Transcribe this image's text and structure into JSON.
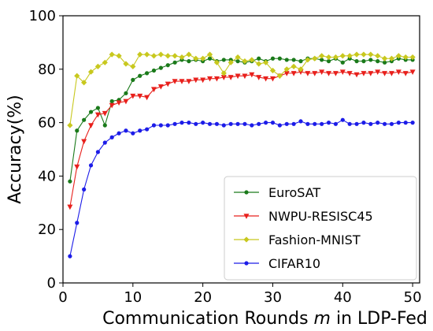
{
  "chart_data": {
    "type": "line",
    "xlabel_prefix": "Communication Rounds ",
    "xlabel_var": "m",
    "xlabel_suffix": " in LDP-Fed",
    "ylabel": "Accuracy(%)",
    "xlim": [
      0,
      51
    ],
    "ylim": [
      0,
      100
    ],
    "xticks": [
      0,
      10,
      20,
      30,
      40,
      50
    ],
    "yticks": [
      0,
      20,
      40,
      60,
      80,
      100
    ],
    "grid": false,
    "legend_position": "lower-right",
    "x": [
      1,
      2,
      3,
      4,
      5,
      6,
      7,
      8,
      9,
      10,
      11,
      12,
      13,
      14,
      15,
      16,
      17,
      18,
      19,
      20,
      21,
      22,
      23,
      24,
      25,
      26,
      27,
      28,
      29,
      30,
      31,
      32,
      33,
      34,
      35,
      36,
      37,
      38,
      39,
      40,
      41,
      42,
      43,
      44,
      45,
      46,
      47,
      48,
      49,
      50
    ],
    "series": [
      {
        "name": "EuroSAT",
        "color": "#1a7a1a",
        "marker": "dot",
        "values": [
          38,
          57,
          61,
          64,
          65.5,
          59,
          68,
          68.5,
          71,
          76,
          77.5,
          78.5,
          79.5,
          80.5,
          81.5,
          82.5,
          83.5,
          83,
          83.5,
          83,
          84,
          83,
          83.5,
          83.5,
          83,
          82.5,
          83,
          84,
          83,
          84,
          84,
          83.5,
          83.5,
          83,
          84,
          84,
          83.5,
          83,
          84,
          82.5,
          84,
          83,
          83,
          83.5,
          83,
          82.5,
          83,
          84,
          83.5,
          83.5
        ]
      },
      {
        "name": "NWPU-RESISC45",
        "color": "#e8201c",
        "marker": "triangle-down",
        "values": [
          28.5,
          43.5,
          53,
          59,
          63,
          63.5,
          66.5,
          67.5,
          68,
          70,
          70,
          69.5,
          72.5,
          73.5,
          74.5,
          75.5,
          75.5,
          75.5,
          76,
          76,
          76.5,
          76.5,
          77,
          77,
          77.5,
          77.5,
          78,
          77,
          76.5,
          76.5,
          77.5,
          78.5,
          78.5,
          79,
          78.5,
          78.5,
          79,
          78.5,
          78.5,
          79,
          78.5,
          78,
          78.5,
          78.5,
          79,
          78.5,
          78.5,
          79,
          78.5,
          79
        ]
      },
      {
        "name": "Fashion-MNIST",
        "color": "#c8c81e",
        "marker": "diamond",
        "values": [
          59,
          77.5,
          75,
          79,
          81,
          82.5,
          85.5,
          85,
          82,
          81,
          85.5,
          85.5,
          85,
          85.5,
          85,
          85,
          84.5,
          85.5,
          84,
          84,
          85.5,
          82.5,
          78.5,
          82.5,
          84.5,
          83,
          83.5,
          82,
          82.5,
          79.5,
          77.5,
          80,
          81,
          80,
          83.5,
          84,
          85,
          84.5,
          84.5,
          85,
          85,
          85.5,
          85.5,
          85.5,
          85,
          84,
          84,
          85,
          84.5,
          84.5
        ]
      },
      {
        "name": "CIFAR10",
        "color": "#1c1ce8",
        "marker": "dot",
        "values": [
          10,
          22.5,
          35,
          44,
          49,
          52.5,
          54.5,
          56,
          57,
          56,
          57,
          57.5,
          59,
          59,
          59,
          59.5,
          60,
          60,
          59.5,
          60,
          59.5,
          59.5,
          59,
          59.5,
          59.5,
          59.5,
          59,
          59.5,
          60,
          60,
          59,
          59.5,
          59.5,
          60.5,
          59.5,
          59.5,
          59.5,
          60,
          59.5,
          61,
          59.5,
          59.5,
          60,
          59.5,
          60,
          59.5,
          59.5,
          60,
          60,
          60
        ]
      }
    ]
  }
}
